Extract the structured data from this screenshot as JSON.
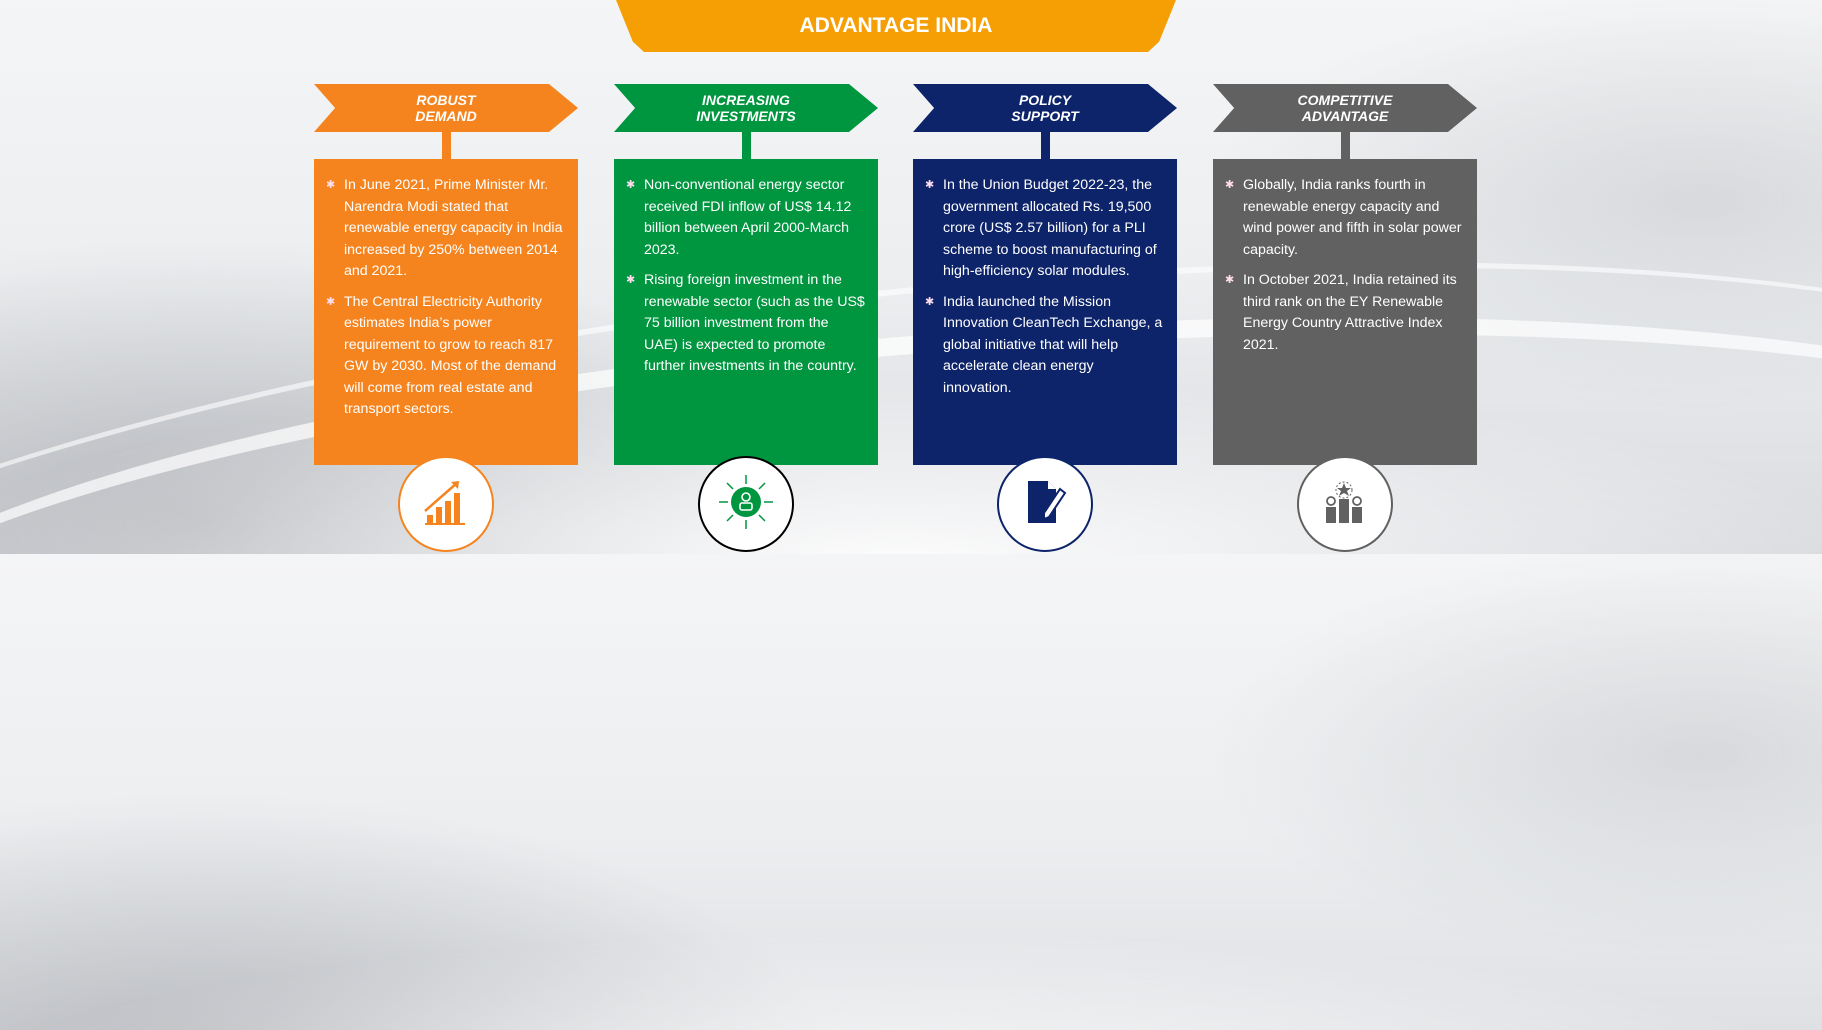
{
  "header": {
    "title": "ADVANTAGE INDIA",
    "color": "#f59f05"
  },
  "cards": [
    {
      "title": "ROBUST\nDEMAND",
      "color": "#f5841f",
      "icon": "growth-chart-icon",
      "bullets": [
        "In June 2021, Prime Minister Mr. Narendra Modi stated that renewable energy capacity in India increased by 250% between 2014 and 2021.",
        "The Central Electricity Authority estimates India’s power requirement to grow to reach 817 GW by 2030. Most of the demand will come from real estate and transport sectors."
      ]
    },
    {
      "title": "INCREASING\nINVESTMENTS",
      "color": "#009640",
      "icon": "investor-network-icon",
      "bullets": [
        "Non-conventional energy sector received FDI inflow of US$ 14.12 billion between April 2000-March 2023.",
        "Rising foreign investment in the renewable sector (such as the US$ 75 billion investment from the UAE) is expected to promote further investments in the country."
      ]
    },
    {
      "title": "POLICY\nSUPPORT",
      "color": "#0d246b",
      "icon": "document-pen-icon",
      "bullets": [
        "In the Union Budget 2022-23, the government allocated Rs. 19,500 crore (US$ 2.57 billion) for a PLI scheme to boost manufacturing of high-efficiency solar modules.",
        "India launched the Mission Innovation CleanTech Exchange, a global initiative that will help accelerate clean energy innovation."
      ]
    },
    {
      "title": "COMPETITIVE\nADVANTAGE",
      "color": "#616161",
      "icon": "podium-medal-icon",
      "bullets": [
        "Globally, India ranks fourth in renewable energy capacity and wind power and fifth in solar power capacity.",
        "In October 2021, India retained its third rank on the EY Renewable Energy Country Attractive Index 2021."
      ]
    }
  ]
}
